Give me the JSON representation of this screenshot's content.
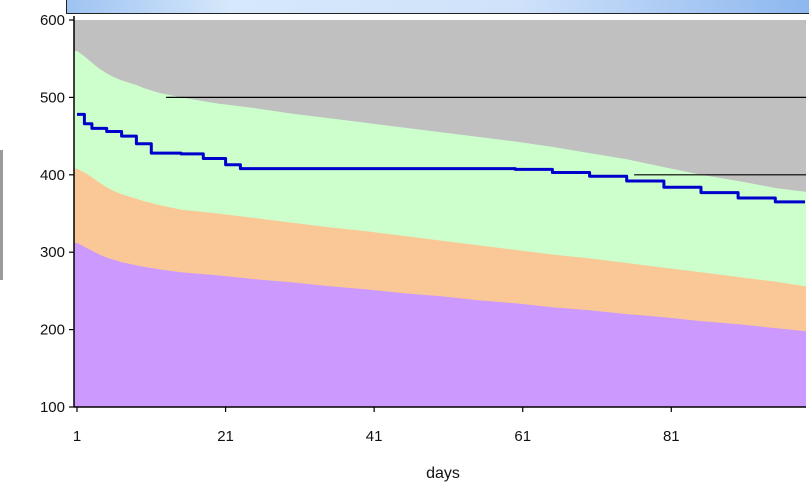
{
  "chart_data": {
    "type": "area",
    "xlabel": "days",
    "ylabel": "",
    "xlim": [
      1,
      99
    ],
    "ylim": [
      100,
      600
    ],
    "x_ticks": [
      1,
      21,
      41,
      61,
      81
    ],
    "y_ticks": [
      100,
      200,
      300,
      400,
      500,
      600
    ],
    "grid": false,
    "legend": "none",
    "reference_lines": [
      {
        "y": 500,
        "x_start": 13,
        "x_end": 99,
        "color": "#000000"
      },
      {
        "y": 400,
        "x_start": 76,
        "x_end": 99,
        "color": "#000000"
      }
    ],
    "bands": [
      {
        "color": "#c0c0c0",
        "top": [
          [
            1,
            600
          ],
          [
            99,
            600
          ]
        ]
      },
      {
        "color": "#ccffcc",
        "top": [
          [
            1,
            560
          ],
          [
            2,
            553
          ],
          [
            3,
            545
          ],
          [
            4,
            537
          ],
          [
            5,
            531
          ],
          [
            6,
            526
          ],
          [
            7,
            522
          ],
          [
            8,
            519
          ],
          [
            9,
            516
          ],
          [
            10,
            512
          ],
          [
            12,
            506
          ],
          [
            15,
            500
          ],
          [
            20,
            492
          ],
          [
            25,
            486
          ],
          [
            30,
            479
          ],
          [
            35,
            473
          ],
          [
            40,
            467
          ],
          [
            45,
            461
          ],
          [
            50,
            455
          ],
          [
            55,
            449
          ],
          [
            60,
            443
          ],
          [
            65,
            436
          ],
          [
            70,
            428
          ],
          [
            75,
            420
          ],
          [
            80,
            410
          ],
          [
            85,
            400
          ],
          [
            90,
            392
          ],
          [
            95,
            383
          ],
          [
            99,
            378
          ]
        ]
      },
      {
        "color": "#fac896",
        "top": [
          [
            1,
            408
          ],
          [
            2,
            403
          ],
          [
            3,
            397
          ],
          [
            4,
            390
          ],
          [
            5,
            384
          ],
          [
            6,
            379
          ],
          [
            7,
            375
          ],
          [
            8,
            372
          ],
          [
            9,
            369
          ],
          [
            10,
            366
          ],
          [
            12,
            361
          ],
          [
            15,
            355
          ],
          [
            20,
            350
          ],
          [
            25,
            344
          ],
          [
            30,
            338
          ],
          [
            35,
            332
          ],
          [
            40,
            327
          ],
          [
            45,
            321
          ],
          [
            50,
            315
          ],
          [
            55,
            309
          ],
          [
            60,
            303
          ],
          [
            65,
            297
          ],
          [
            70,
            292
          ],
          [
            75,
            286
          ],
          [
            80,
            280
          ],
          [
            85,
            274
          ],
          [
            90,
            268
          ],
          [
            95,
            262
          ],
          [
            99,
            256
          ]
        ]
      },
      {
        "color": "#cc99ff",
        "top": [
          [
            1,
            312
          ],
          [
            2,
            307
          ],
          [
            3,
            302
          ],
          [
            4,
            297
          ],
          [
            5,
            293
          ],
          [
            6,
            290
          ],
          [
            7,
            287
          ],
          [
            8,
            285
          ],
          [
            9,
            283
          ],
          [
            10,
            281
          ],
          [
            12,
            278
          ],
          [
            15,
            274
          ],
          [
            20,
            270
          ],
          [
            25,
            265
          ],
          [
            30,
            261
          ],
          [
            35,
            256
          ],
          [
            40,
            252
          ],
          [
            45,
            247
          ],
          [
            50,
            243
          ],
          [
            55,
            238
          ],
          [
            60,
            234
          ],
          [
            65,
            229
          ],
          [
            70,
            225
          ],
          [
            75,
            220
          ],
          [
            80,
            216
          ],
          [
            85,
            211
          ],
          [
            90,
            207
          ],
          [
            95,
            202
          ],
          [
            99,
            198
          ]
        ]
      }
    ],
    "series": [
      {
        "color": "#0000cc",
        "x": [
          1,
          2,
          3,
          5,
          7,
          9,
          11,
          15,
          18,
          21,
          23,
          30,
          40,
          50,
          60,
          65,
          70,
          75,
          80,
          85,
          90,
          95,
          99
        ],
        "y": [
          478,
          466,
          460,
          456,
          450,
          440,
          428,
          427,
          421,
          413,
          408,
          408,
          408,
          408,
          407,
          403,
          398,
          392,
          384,
          377,
          370,
          365,
          365
        ]
      }
    ]
  }
}
